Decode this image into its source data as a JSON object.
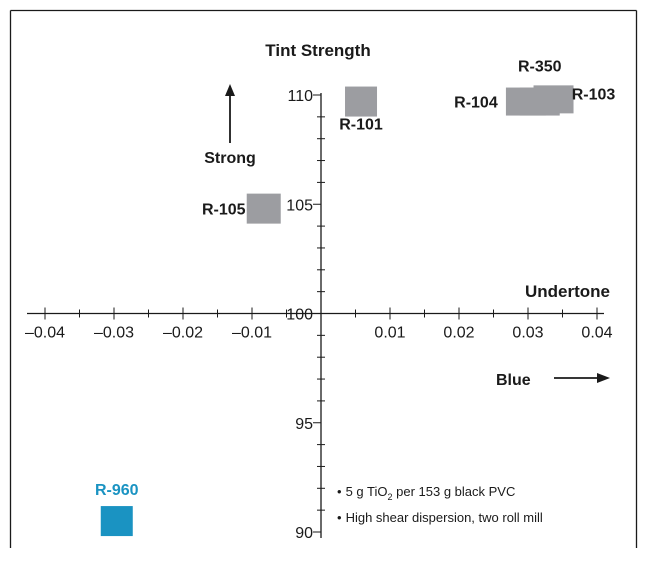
{
  "chart_data": {
    "type": "scatter",
    "title": "Tint Strength",
    "xlabel": "Undertone",
    "ylabel": "Tint Strength",
    "xlim": [
      -0.04,
      0.04
    ],
    "ylim": [
      90,
      110
    ],
    "x_origin_y": 100,
    "x_ticks": [
      "-0.04",
      "-0.03",
      "-0.02",
      "-0.01",
      "0.01",
      "0.02",
      "0.03",
      "0.04"
    ],
    "x_tick_values": [
      -0.04,
      -0.03,
      -0.02,
      -0.01,
      0.01,
      0.02,
      0.03,
      0.04
    ],
    "y_ticks": [
      "90",
      "95",
      "100",
      "105",
      "110"
    ],
    "y_tick_values": [
      90,
      95,
      100,
      105,
      110
    ],
    "grid": false,
    "points": [
      {
        "label": "R-101",
        "x": 0.0058,
        "y": 109.7,
        "color": "#9c9da1"
      },
      {
        "label": "R-104",
        "x": 0.0297,
        "y": 109.7,
        "color": "#9c9da1"
      },
      {
        "label": "R-350",
        "x": 0.0317,
        "y": 109.7,
        "color": "#9c9da1"
      },
      {
        "label": "R-103",
        "x": 0.0337,
        "y": 109.8,
        "color": "#9c9da1"
      },
      {
        "label": "R-105",
        "x": -0.0083,
        "y": 104.8,
        "color": "#9c9da1"
      },
      {
        "label": "R-960",
        "x": -0.0296,
        "y": 90.5,
        "color": "#1a93c2"
      }
    ],
    "annotations": {
      "strong": "Strong",
      "blue": "Blue",
      "axis_name_x": "Undertone",
      "axis_name_y": "Tint Strength"
    },
    "notes": {
      "prefix": "5 g TiO",
      "subscript": "2",
      "suffix": " per 153 g black PVC",
      "line2": "High shear dispersion, two roll mill",
      "bullet": "•"
    }
  }
}
